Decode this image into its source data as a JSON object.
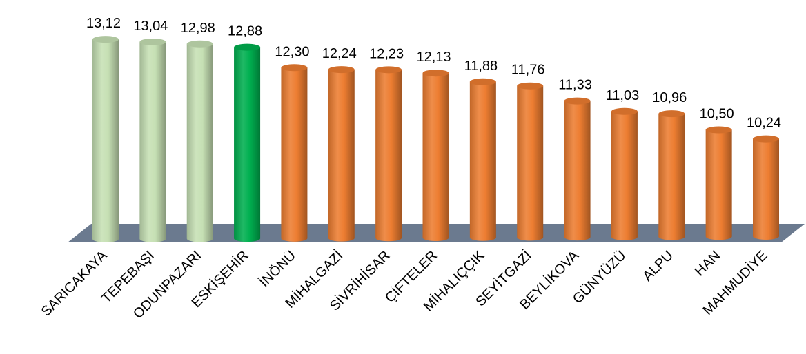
{
  "chart_data": {
    "type": "bar",
    "title": "",
    "xlabel": "",
    "ylabel": "",
    "ylim": [
      7.5,
      13.2
    ],
    "grid": false,
    "legend": "none",
    "categories": [
      "SARICAKAYA",
      "TEPEBAŞI",
      "ODUNPAZARI",
      "ESKİŞEHİR",
      "İNÖNÜ",
      "MİHALGAZİ",
      "SİVRİHİSAR",
      "ÇİFTELER",
      "MİHALIÇÇIK",
      "SEYİTGAZİ",
      "BEYLİKOVA",
      "GÜNYÜZÜ",
      "ALPU",
      "HAN",
      "MAHMUDİYE"
    ],
    "values": [
      13.12,
      13.04,
      12.98,
      12.88,
      12.3,
      12.24,
      12.23,
      12.13,
      11.88,
      11.76,
      11.33,
      11.03,
      10.96,
      10.5,
      10.24
    ],
    "value_labels": [
      "13,12",
      "13,04",
      "12,98",
      "12,88",
      "12,30",
      "12,24",
      "12,23",
      "12,13",
      "11,88",
      "11,76",
      "11,33",
      "11,03",
      "10,96",
      "10,50",
      "10,24"
    ],
    "bar_colors": [
      "#c6e0b4",
      "#c6e0b4",
      "#c6e0b4",
      "#00b050",
      "#ed7d31",
      "#ed7d31",
      "#ed7d31",
      "#ed7d31",
      "#ed7d31",
      "#ed7d31",
      "#ed7d31",
      "#ed7d31",
      "#ed7d31",
      "#ed7d31",
      "#ed7d31"
    ],
    "floor_color": "#6b7a8f"
  }
}
